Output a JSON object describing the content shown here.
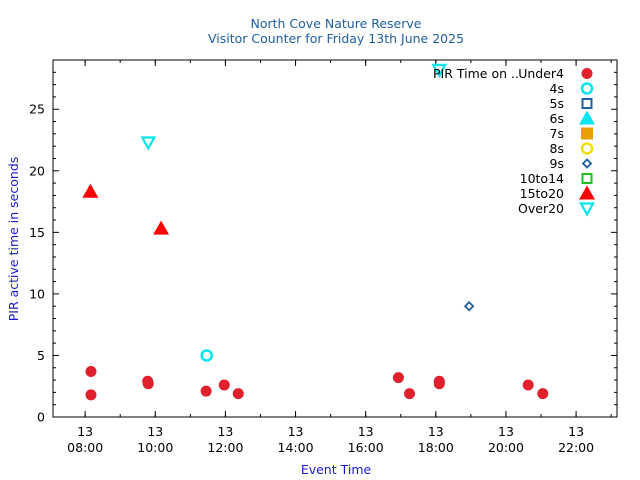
{
  "chart_data": {
    "type": "scatter",
    "title": "North Cove Nature Reserve",
    "subtitle": "Visitor Counter for Friday 13th June 2025",
    "xlabel": "Event Time",
    "ylabel": "PIR active time in seconds",
    "legend_title": "PIR Time on ..",
    "legend_position": "top-right",
    "grid": false,
    "xlim": [
      "2025-06-13 07:05",
      "2025-06-13 23:10"
    ],
    "ylim": [
      0,
      29
    ],
    "x_ticks": [
      {
        "value": "2025-06-13 08:00",
        "day": "13",
        "time": "08:00"
      },
      {
        "value": "2025-06-13 10:00",
        "day": "13",
        "time": "10:00"
      },
      {
        "value": "2025-06-13 12:00",
        "day": "13",
        "time": "12:00"
      },
      {
        "value": "2025-06-13 14:00",
        "day": "13",
        "time": "14:00"
      },
      {
        "value": "2025-06-13 16:00",
        "day": "13",
        "time": "16:00"
      },
      {
        "value": "2025-06-13 18:00",
        "day": "13",
        "time": "18:00"
      },
      {
        "value": "2025-06-13 20:00",
        "day": "13",
        "time": "20:00"
      },
      {
        "value": "2025-06-13 22:00",
        "day": "13",
        "time": "22:00"
      }
    ],
    "y_ticks": [
      0,
      5,
      10,
      15,
      20,
      25
    ],
    "series": [
      {
        "name": "Under4",
        "marker": "circle-filled",
        "color": "#e0202c",
        "points": [
          {
            "x": "2025-06-13 08:10",
            "y": 3.7
          },
          {
            "x": "2025-06-13 08:10",
            "y": 1.8
          },
          {
            "x": "2025-06-13 09:47",
            "y": 2.9
          },
          {
            "x": "2025-06-13 09:48",
            "y": 2.7
          },
          {
            "x": "2025-06-13 11:27",
            "y": 2.1
          },
          {
            "x": "2025-06-13 11:58",
            "y": 2.6
          },
          {
            "x": "2025-06-13 12:22",
            "y": 1.9
          },
          {
            "x": "2025-06-13 16:56",
            "y": 3.2
          },
          {
            "x": "2025-06-13 17:15",
            "y": 1.9
          },
          {
            "x": "2025-06-13 18:06",
            "y": 2.9
          },
          {
            "x": "2025-06-13 18:06",
            "y": 2.7
          },
          {
            "x": "2025-06-13 20:38",
            "y": 2.6
          },
          {
            "x": "2025-06-13 21:03",
            "y": 1.9
          }
        ]
      },
      {
        "name": "4s",
        "marker": "circle-open",
        "color": "#00e5ee",
        "points": [
          {
            "x": "2025-06-13 11:28",
            "y": 5.0
          }
        ]
      },
      {
        "name": "5s",
        "marker": "square-open",
        "color": "#1f5fa0",
        "points": []
      },
      {
        "name": "6s",
        "marker": "triangle-up-filled",
        "color": "#00e5ee",
        "points": []
      },
      {
        "name": "7s",
        "marker": "square-filled",
        "color": "#e8a000",
        "points": []
      },
      {
        "name": "8s",
        "marker": "circle-open",
        "color": "#f0e000",
        "points": []
      },
      {
        "name": "9s",
        "marker": "diamond-open",
        "color": "#1f5fa0",
        "points": [
          {
            "x": "2025-06-13 18:57",
            "y": 9.0
          }
        ]
      },
      {
        "name": "10to14",
        "marker": "square-open",
        "color": "#20c020",
        "points": []
      },
      {
        "name": "15to20",
        "marker": "triangle-up-filled",
        "color": "#ff0000",
        "points": [
          {
            "x": "2025-06-13 08:09",
            "y": 18.3
          },
          {
            "x": "2025-06-13 10:10",
            "y": 15.3
          }
        ]
      },
      {
        "name": "Over20",
        "marker": "triangle-down-open",
        "color": "#00e5ee",
        "points": [
          {
            "x": "2025-06-13 09:48",
            "y": 22.3
          },
          {
            "x": "2025-06-13 18:06",
            "y": 28.2
          }
        ]
      }
    ]
  }
}
